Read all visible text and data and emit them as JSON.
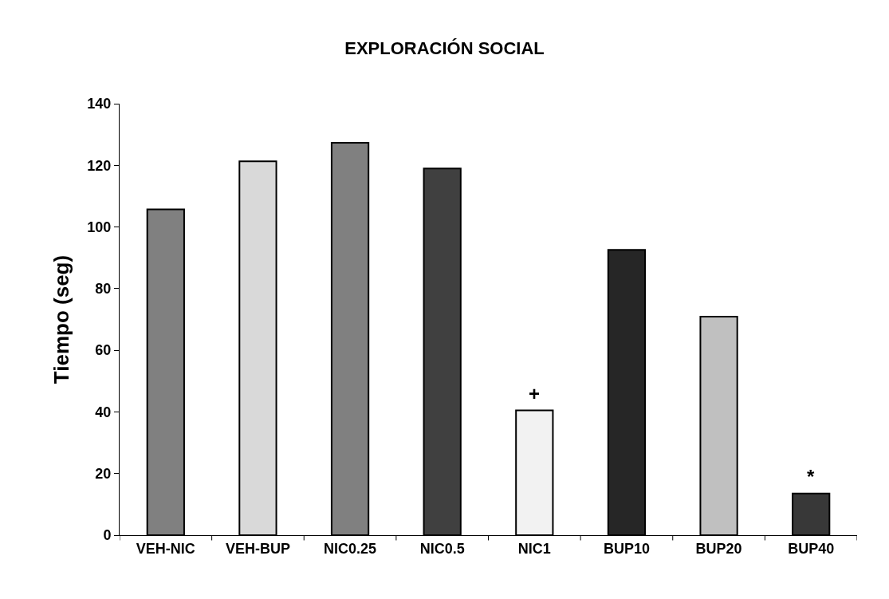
{
  "chart_data": {
    "type": "bar",
    "title": "EXPLORACIÓN SOCIAL",
    "ylabel": "Tiempo (seg)",
    "categories": [
      "VEH-NIC",
      "VEH-BUP",
      "NIC0.25",
      "NIC0.5",
      "NIC1",
      "BUP10",
      "BUP20",
      "BUP40"
    ],
    "values": [
      105.7,
      121.3,
      127.3,
      119,
      40.5,
      92.6,
      70.9,
      13.5
    ],
    "colors": [
      "#808080",
      "#d9d9d9",
      "#808080",
      "#404040",
      "#f2f2f2",
      "#262626",
      "#c0c0c0",
      "#383838"
    ],
    "ylim": [
      0,
      140
    ],
    "yticks": [
      0,
      20,
      40,
      60,
      80,
      100,
      120,
      140
    ],
    "annotations": [
      {
        "text": "+",
        "x": "NIC1",
        "y": 40.5
      },
      {
        "text": "*",
        "x": "BUP40",
        "y": 13.5
      }
    ]
  }
}
